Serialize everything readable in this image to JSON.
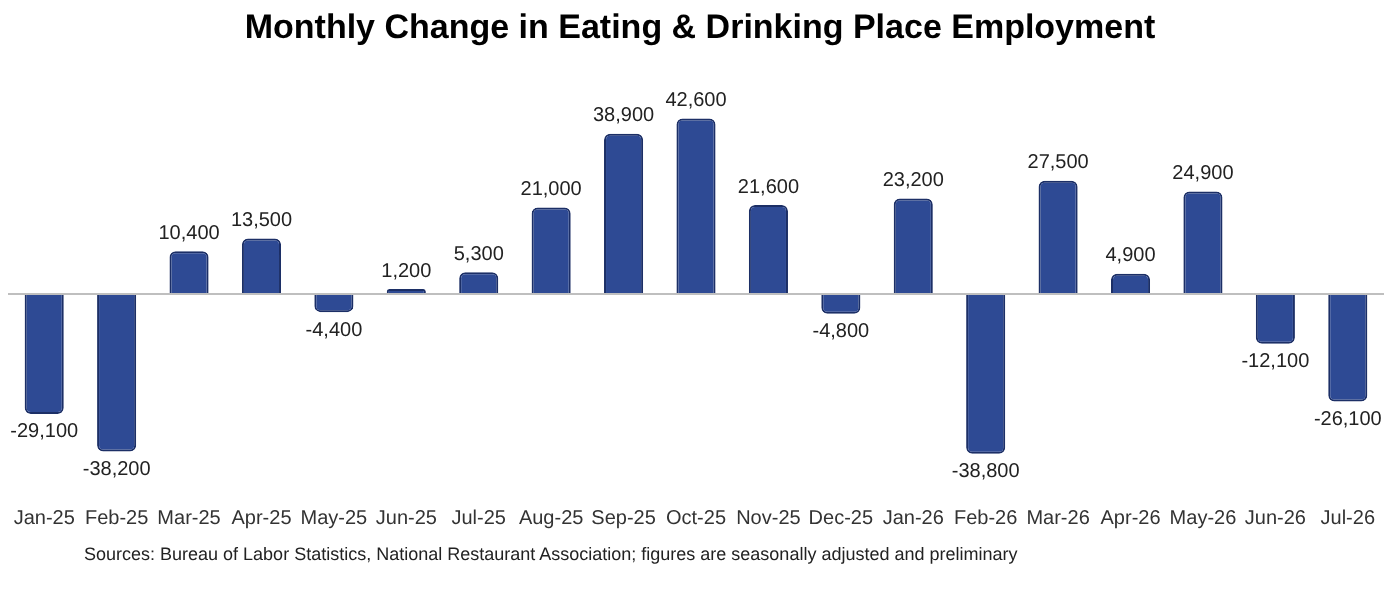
{
  "chart_data": {
    "type": "bar",
    "title": "Monthly Change in Eating & Drinking Place Employment",
    "categories": [
      "Jan-25",
      "Feb-25",
      "Mar-25",
      "Apr-25",
      "May-25",
      "Jun-25",
      "Jul-25",
      "Aug-25",
      "Sep-25",
      "Oct-25",
      "Nov-25",
      "Dec-25",
      "Jan-26",
      "Feb-26",
      "Mar-26",
      "Apr-26",
      "May-26",
      "Jun-26",
      "Jul-26"
    ],
    "values": [
      -29100,
      -38200,
      10400,
      13500,
      -4400,
      1200,
      5300,
      21000,
      38900,
      42600,
      21600,
      -4800,
      23200,
      -38800,
      27500,
      4900,
      24900,
      -12100,
      -26100
    ],
    "value_labels": [
      "-29,100",
      "-38,200",
      "10,400",
      "13,500",
      "-4,400",
      "1,200",
      "5,300",
      "21,000",
      "38,900",
      "42,600",
      "21,600",
      "-4,800",
      "23,200",
      "-38,800",
      "27,500",
      "4,900",
      "24,900",
      "-12,100",
      "-26,100"
    ],
    "color": "#2e4a94",
    "grid": false,
    "legend": false,
    "tick_labels": "x",
    "annotations": [
      "Sources: Bureau of Labor Statistics, National Restaurant Association; figures are seasonally adjusted and preliminary"
    ]
  }
}
